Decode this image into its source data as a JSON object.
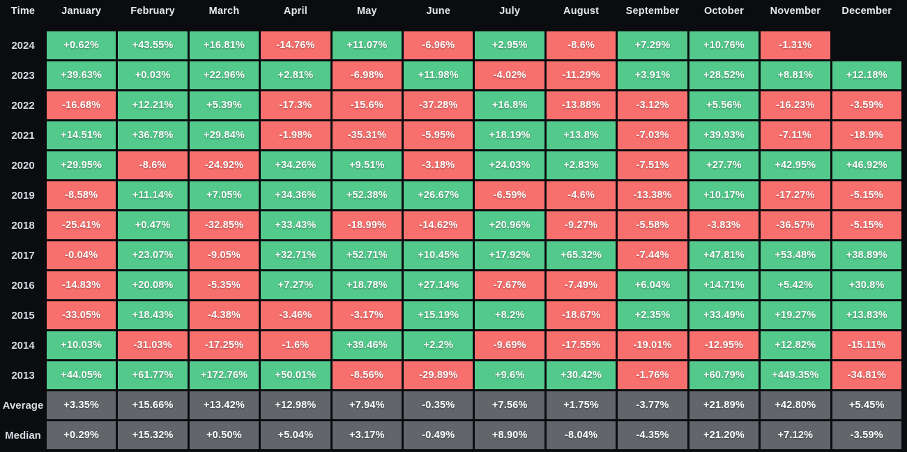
{
  "header": {
    "time_label": "Time"
  },
  "colors": {
    "positive_cell": "#54c98c",
    "negative_cell": "#f7706e",
    "summary_cell": "#626569",
    "background": "#0a0c0f",
    "header_text": "#e7e9ed",
    "cell_text": "#ffffff"
  },
  "chart_data": {
    "type": "heatmap",
    "description_visible": "Monthly percentage returns table by year with Average and Median summary rows; green = positive, red = negative, gray = summary",
    "columns": [
      "January",
      "February",
      "March",
      "April",
      "May",
      "June",
      "July",
      "August",
      "September",
      "October",
      "November",
      "December"
    ],
    "rows": [
      {
        "label": "2024",
        "kind": "year",
        "values": [
          "+0.62%",
          "+43.55%",
          "+16.81%",
          "-14.76%",
          "+11.07%",
          "-6.96%",
          "+2.95%",
          "-8.6%",
          "+7.29%",
          "+10.76%",
          "-1.31%",
          null
        ]
      },
      {
        "label": "2023",
        "kind": "year",
        "values": [
          "+39.63%",
          "+0.03%",
          "+22.96%",
          "+2.81%",
          "-6.98%",
          "+11.98%",
          "-4.02%",
          "-11.29%",
          "+3.91%",
          "+28.52%",
          "+8.81%",
          "+12.18%"
        ]
      },
      {
        "label": "2022",
        "kind": "year",
        "values": [
          "-16.68%",
          "+12.21%",
          "+5.39%",
          "-17.3%",
          "-15.6%",
          "-37.28%",
          "+16.8%",
          "-13.88%",
          "-3.12%",
          "+5.56%",
          "-16.23%",
          "-3.59%"
        ]
      },
      {
        "label": "2021",
        "kind": "year",
        "values": [
          "+14.51%",
          "+36.78%",
          "+29.84%",
          "-1.98%",
          "-35.31%",
          "-5.95%",
          "+18.19%",
          "+13.8%",
          "-7.03%",
          "+39.93%",
          "-7.11%",
          "-18.9%"
        ]
      },
      {
        "label": "2020",
        "kind": "year",
        "values": [
          "+29.95%",
          "-8.6%",
          "-24.92%",
          "+34.26%",
          "+9.51%",
          "-3.18%",
          "+24.03%",
          "+2.83%",
          "-7.51%",
          "+27.7%",
          "+42.95%",
          "+46.92%"
        ]
      },
      {
        "label": "2019",
        "kind": "year",
        "values": [
          "-8.58%",
          "+11.14%",
          "+7.05%",
          "+34.36%",
          "+52.38%",
          "+26.67%",
          "-6.59%",
          "-4.6%",
          "-13.38%",
          "+10.17%",
          "-17.27%",
          "-5.15%"
        ]
      },
      {
        "label": "2018",
        "kind": "year",
        "values": [
          "-25.41%",
          "+0.47%",
          "-32.85%",
          "+33.43%",
          "-18.99%",
          "-14.62%",
          "+20.96%",
          "-9.27%",
          "-5.58%",
          "-3.83%",
          "-36.57%",
          "-5.15%"
        ]
      },
      {
        "label": "2017",
        "kind": "year",
        "values": [
          "-0.04%",
          "+23.07%",
          "-9.05%",
          "+32.71%",
          "+52.71%",
          "+10.45%",
          "+17.92%",
          "+65.32%",
          "-7.44%",
          "+47.81%",
          "+53.48%",
          "+38.89%"
        ]
      },
      {
        "label": "2016",
        "kind": "year",
        "values": [
          "-14.83%",
          "+20.08%",
          "-5.35%",
          "+7.27%",
          "+18.78%",
          "+27.14%",
          "-7.67%",
          "-7.49%",
          "+6.04%",
          "+14.71%",
          "+5.42%",
          "+30.8%"
        ]
      },
      {
        "label": "2015",
        "kind": "year",
        "values": [
          "-33.05%",
          "+18.43%",
          "-4.38%",
          "-3.46%",
          "-3.17%",
          "+15.19%",
          "+8.2%",
          "-18.67%",
          "+2.35%",
          "+33.49%",
          "+19.27%",
          "+13.83%"
        ]
      },
      {
        "label": "2014",
        "kind": "year",
        "values": [
          "+10.03%",
          "-31.03%",
          "-17.25%",
          "-1.6%",
          "+39.46%",
          "+2.2%",
          "-9.69%",
          "-17.55%",
          "-19.01%",
          "-12.95%",
          "+12.82%",
          "-15.11%"
        ]
      },
      {
        "label": "2013",
        "kind": "year",
        "values": [
          "+44.05%",
          "+61.77%",
          "+172.76%",
          "+50.01%",
          "-8.56%",
          "-29.89%",
          "+9.6%",
          "+30.42%",
          "-1.76%",
          "+60.79%",
          "+449.35%",
          "-34.81%"
        ]
      },
      {
        "label": "Average",
        "kind": "summary",
        "values": [
          "+3.35%",
          "+15.66%",
          "+13.42%",
          "+12.98%",
          "+7.94%",
          "-0.35%",
          "+7.56%",
          "+1.75%",
          "-3.77%",
          "+21.89%",
          "+42.80%",
          "+5.45%"
        ]
      },
      {
        "label": "Median",
        "kind": "summary",
        "values": [
          "+0.29%",
          "+15.32%",
          "+0.50%",
          "+5.04%",
          "+3.17%",
          "-0.49%",
          "+8.90%",
          "-8.04%",
          "-4.35%",
          "+21.20%",
          "+7.12%",
          "-3.59%"
        ]
      }
    ]
  }
}
